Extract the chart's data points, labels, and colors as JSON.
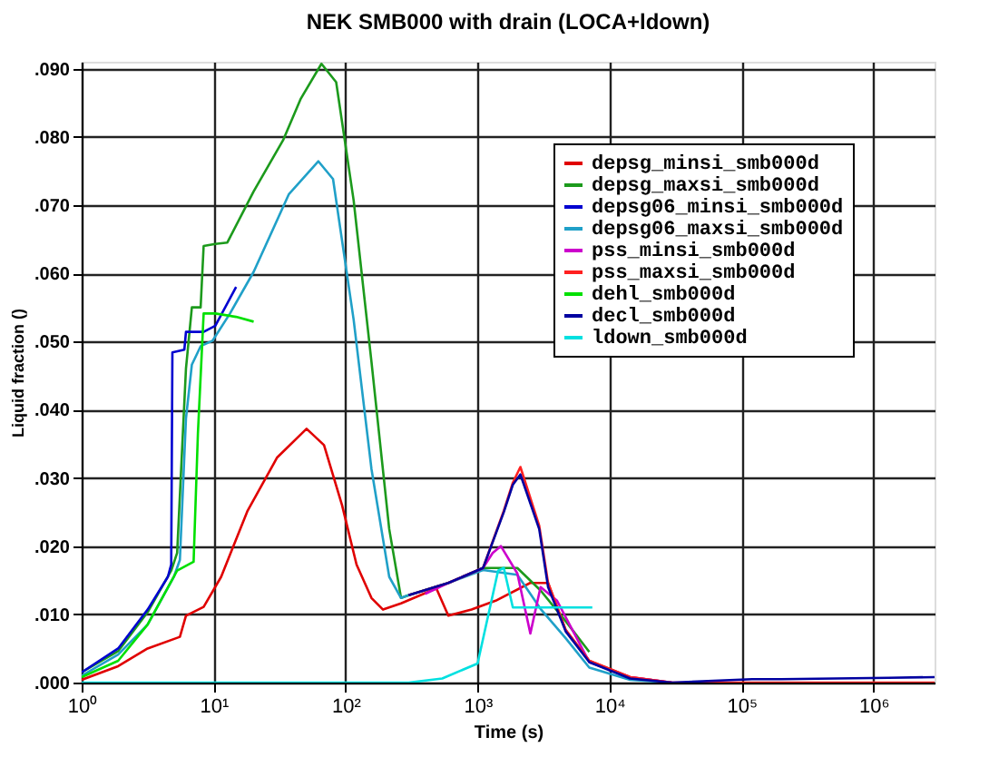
{
  "chart_data": {
    "type": "line",
    "title": "NEK SMB000 with drain (LOCA+ldown)",
    "xlabel": "Time (s)",
    "ylabel": "Liquid fraction ()",
    "log": "x",
    "grid": true,
    "legend": "top right",
    "line_style": "solid",
    "xlim": [
      1,
      2900000
    ],
    "ylim": [
      0,
      0.091
    ],
    "xticks": [
      {
        "value": 1,
        "label": "10⁰"
      },
      {
        "value": 10,
        "label": "10¹"
      },
      {
        "value": 100,
        "label": "10²"
      },
      {
        "value": 1000,
        "label": "10³"
      },
      {
        "value": 10000,
        "label": "10⁴"
      },
      {
        "value": 100000,
        "label": "10⁵"
      },
      {
        "value": 1000000,
        "label": "10⁶"
      }
    ],
    "yticks": [
      {
        "value": 0,
        "label": ".000"
      },
      {
        "value": 0.01,
        "label": ".010"
      },
      {
        "value": 0.02,
        "label": ".020"
      },
      {
        "value": 0.03,
        "label": ".030"
      },
      {
        "value": 0.04,
        "label": ".040"
      },
      {
        "value": 0.05,
        "label": ".050"
      },
      {
        "value": 0.06,
        "label": ".060"
      },
      {
        "value": 0.07,
        "label": ".070"
      },
      {
        "value": 0.08,
        "label": ".080"
      },
      {
        "value": 0.09,
        "label": ".090"
      }
    ],
    "series": [
      {
        "name": "depsg_minsi_smb000d",
        "color": "#e00000",
        "x": [
          1,
          1.89,
          3.16,
          5.55,
          6.17,
          8.4,
          11.4,
          18.1,
          30.3,
          50.6,
          68.6,
          94,
          121,
          157,
          192,
          263,
          487,
          600,
          900,
          1370,
          2500,
          3420,
          4650,
          7020,
          14300,
          29600
        ],
        "values": [
          0.0004,
          0.0024,
          0.005,
          0.0067,
          0.0098,
          0.0111,
          0.0155,
          0.0252,
          0.033,
          0.0372,
          0.0348,
          0.026,
          0.0173,
          0.0124,
          0.0107,
          0.0116,
          0.0138,
          0.0098,
          0.0107,
          0.012,
          0.0146,
          0.0146,
          0.0077,
          0.0032,
          0.0008,
          0
        ]
      },
      {
        "name": "depsg_maxsi_smb000d",
        "color": "#1c9a1c",
        "x": [
          1,
          1.89,
          3.16,
          4.77,
          5.29,
          6.17,
          6.84,
          7.97,
          8.4,
          10.3,
          12.7,
          20.1,
          33.6,
          45.8,
          65.6,
          84.8,
          115,
          157,
          214,
          263,
          300,
          600,
          1100,
          2000,
          3000,
          4650,
          7020
        ],
        "values": [
          0.0015,
          0.0046,
          0.0103,
          0.0164,
          0.019,
          0.046,
          0.055,
          0.055,
          0.064,
          0.0643,
          0.0645,
          0.072,
          0.0795,
          0.0856,
          0.0907,
          0.088,
          0.0707,
          0.047,
          0.0225,
          0.0124,
          0.0128,
          0.0146,
          0.0168,
          0.0168,
          0.0135,
          0.009,
          0.0045
        ]
      },
      {
        "name": "depsg06_minsi_smb000d",
        "color": "#0000d0",
        "x": [
          1,
          1.89,
          3.16,
          4.5,
          4.77,
          4.87,
          6,
          6.17,
          8.4,
          10.3,
          14.8
        ],
        "values": [
          0.0015,
          0.005,
          0.0107,
          0.0155,
          0.0173,
          0.0484,
          0.0488,
          0.0514,
          0.0514,
          0.0523,
          0.058
        ]
      },
      {
        "name": "depsg06_maxsi_smb000d",
        "color": "#20a0c8",
        "x": [
          1,
          1.89,
          3.16,
          5,
          5.55,
          6.17,
          6.84,
          7.97,
          9.8,
          13.3,
          20.1,
          37.2,
          62.2,
          80.3,
          115,
          157,
          214,
          263,
          300,
          600,
          1100,
          2000,
          3000,
          4650,
          7020,
          14300,
          29600
        ],
        "values": [
          0.001,
          0.0041,
          0.0085,
          0.0155,
          0.018,
          0.0387,
          0.0466,
          0.0493,
          0.0501,
          0.0541,
          0.0602,
          0.0716,
          0.0764,
          0.0738,
          0.0532,
          0.0313,
          0.0155,
          0.0124,
          0.0128,
          0.0146,
          0.0165,
          0.0158,
          0.0108,
          0.0065,
          0.0022,
          0.0004,
          0
        ]
      },
      {
        "name": "pss_minsi_smb000d",
        "color": "#cc00cc",
        "x": [
          400,
          600,
          1100,
          1300,
          1500,
          2000,
          2510,
          3000,
          4000,
          7020,
          14300,
          29600
        ],
        "values": [
          0.013,
          0.0146,
          0.0168,
          0.019,
          0.02,
          0.016,
          0.0072,
          0.014,
          0.012,
          0.003,
          0.0008,
          0
        ]
      },
      {
        "name": "pss_maxsi_smb000d",
        "color": "#ff2020",
        "x": [
          300,
          600,
          1100,
          1580,
          1850,
          2110,
          2930,
          3420,
          4650,
          7020,
          14300,
          29600,
          100000,
          1000000,
          2900000
        ],
        "values": [
          0.0128,
          0.0146,
          0.0168,
          0.0252,
          0.0293,
          0.0316,
          0.023,
          0.0146,
          0.0077,
          0.0032,
          0.0008,
          0,
          0,
          0,
          0
        ]
      },
      {
        "name": "dehl_smb000d",
        "color": "#00e000",
        "x": [
          1,
          1.89,
          3.16,
          5.29,
          7.05,
          7.6,
          8.4,
          10.3,
          14.8,
          20.1
        ],
        "values": [
          0.0008,
          0.0032,
          0.0085,
          0.0164,
          0.0177,
          0.0365,
          0.0541,
          0.0541,
          0.0536,
          0.0529
        ]
      },
      {
        "name": "decl_smb000d",
        "color": "#0000a0",
        "x": [
          300,
          600,
          1100,
          1580,
          1850,
          2110,
          2930,
          3420,
          4650,
          7020,
          14300,
          29600,
          120000,
          200000,
          1300000,
          2900000
        ],
        "values": [
          0.0128,
          0.0146,
          0.0168,
          0.025,
          0.029,
          0.0305,
          0.0225,
          0.014,
          0.0075,
          0.003,
          0.0006,
          0,
          0.0005,
          0.0005,
          0.0007,
          0.0008
        ]
      },
      {
        "name": "ldown_smb000d",
        "color": "#00e0e0",
        "x": [
          1,
          100,
          300,
          540,
          1000,
          1430,
          1580,
          1850,
          3000,
          5000,
          7400
        ],
        "values": [
          0,
          0,
          0,
          0.0006,
          0.0028,
          0.0164,
          0.0168,
          0.011,
          0.011,
          0.011,
          0.011
        ]
      }
    ]
  }
}
